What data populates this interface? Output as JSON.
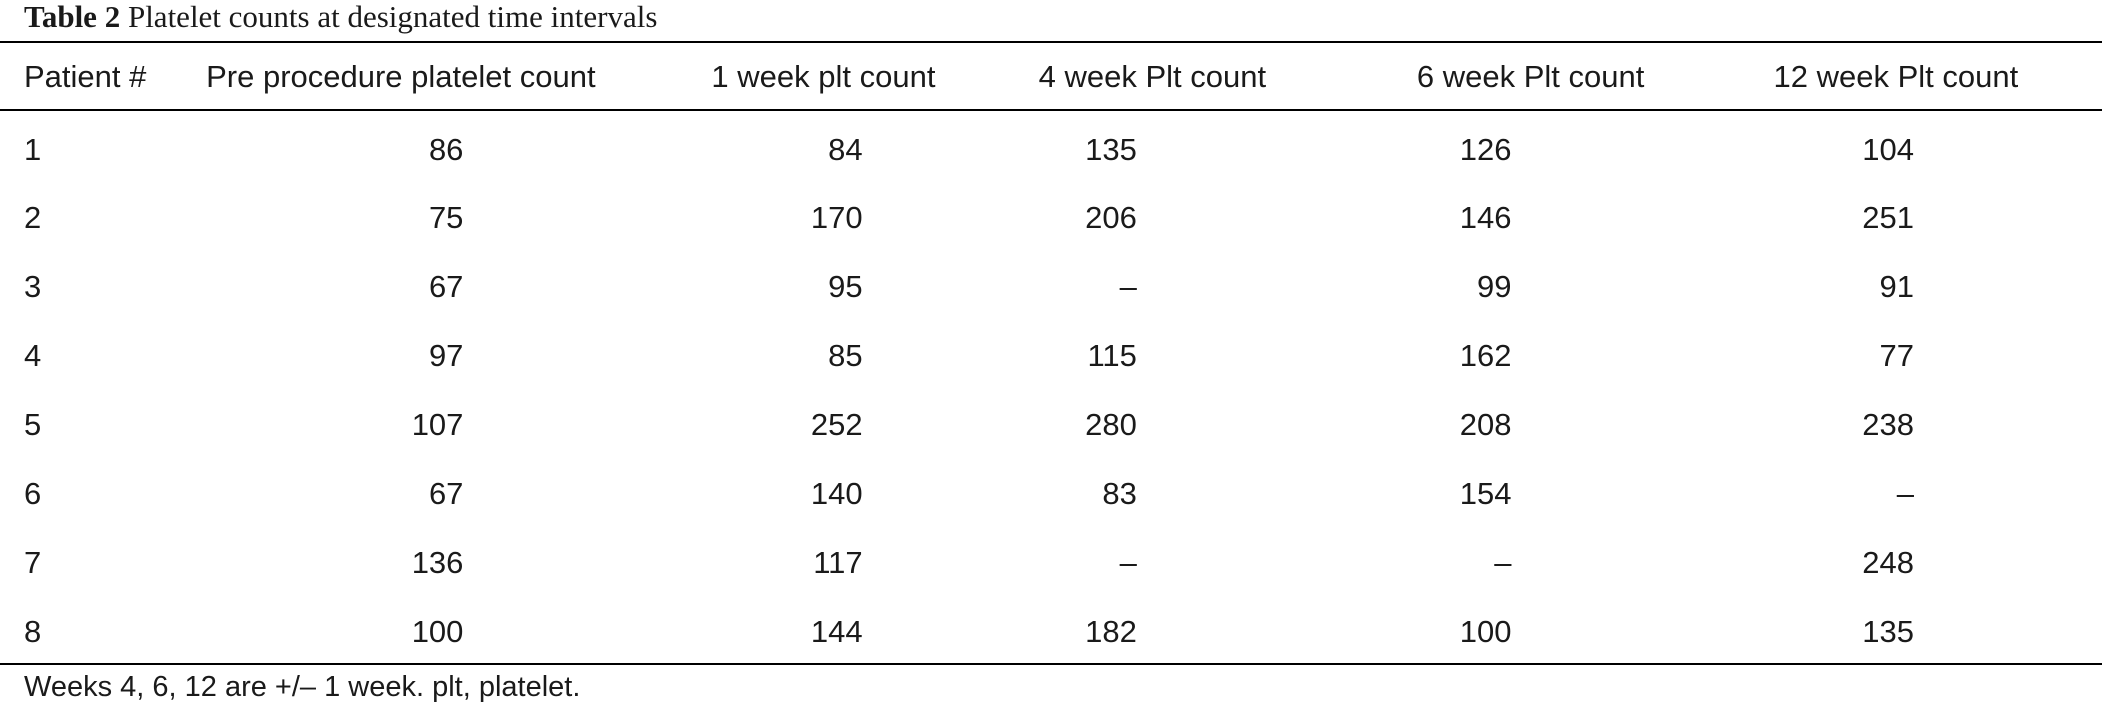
{
  "caption": {
    "label": "Table 2",
    "title": "Platelet counts at designated time intervals"
  },
  "table": {
    "headers": [
      "Patient #",
      "Pre procedure platelet count",
      "1 week plt count",
      "4 week Plt count",
      "6 week Plt count",
      "12 week Plt count"
    ],
    "rows": [
      [
        "1",
        "86",
        "84",
        "135",
        "126",
        "104"
      ],
      [
        "2",
        "75",
        "170",
        "206",
        "146",
        "251"
      ],
      [
        "3",
        "67",
        "95",
        "–",
        "99",
        "91"
      ],
      [
        "4",
        "97",
        "85",
        "115",
        "162",
        "77"
      ],
      [
        "5",
        "107",
        "252",
        "280",
        "208",
        "238"
      ],
      [
        "6",
        "67",
        "140",
        "83",
        "154",
        "–"
      ],
      [
        "7",
        "136",
        "117",
        "–",
        "–",
        "248"
      ],
      [
        "8",
        "100",
        "144",
        "182",
        "100",
        "135"
      ]
    ]
  },
  "footnote": "Weeks 4, 6, 12 are +/– 1 week. plt, platelet."
}
